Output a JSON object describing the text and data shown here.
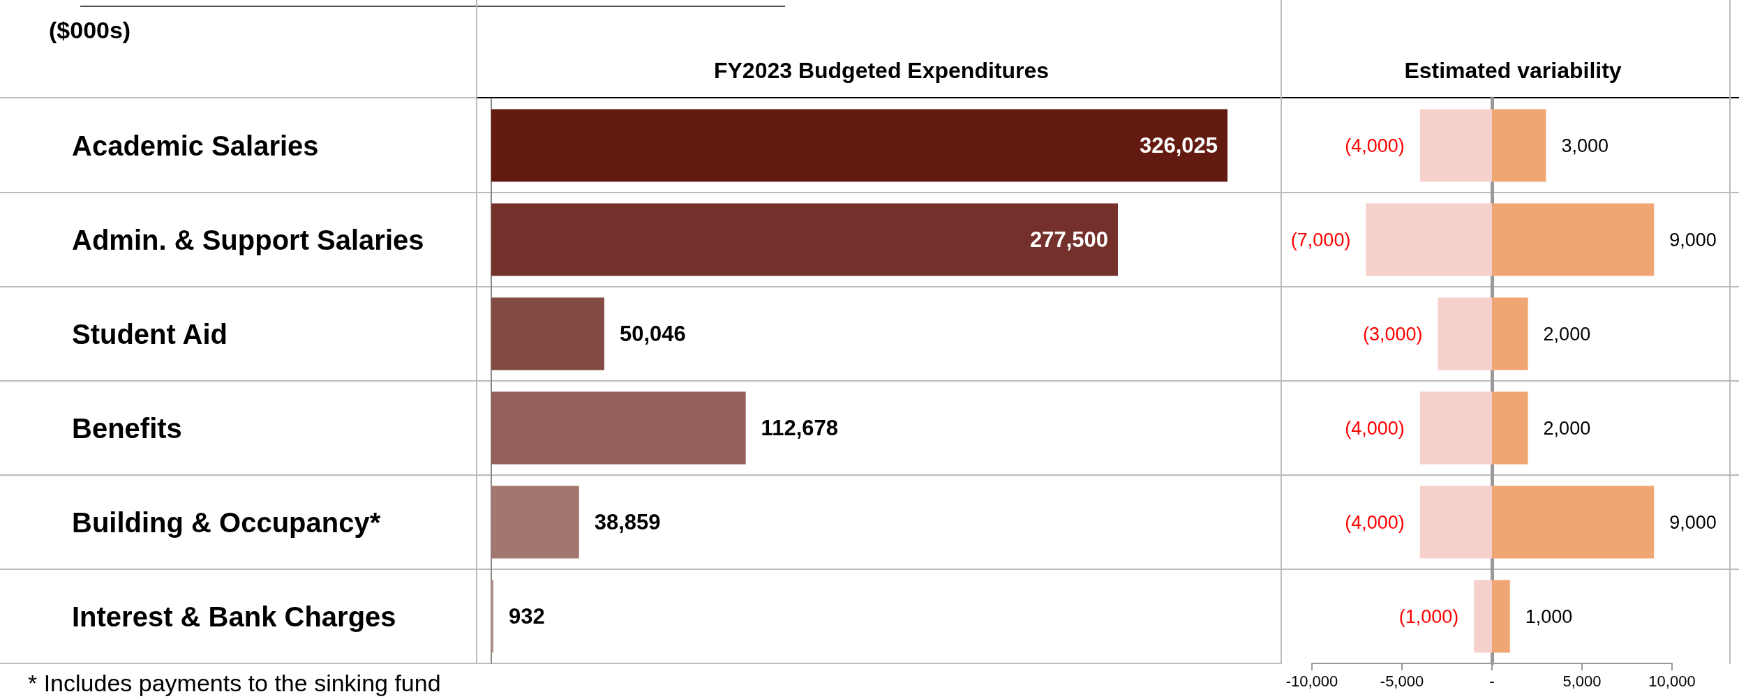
{
  "chart_data": [
    {
      "type": "bar",
      "orientation": "horizontal",
      "title": "FY2023 Budgeted Expenditures",
      "annotations": [
        "($000s)",
        "* Includes payments to the sinking fund"
      ],
      "categories": [
        "Academic Salaries",
        "Admin. & Support Salaries",
        "Student Aid",
        "Benefits",
        "Building & Occupancy*",
        "Interest & Bank Charges"
      ],
      "values": [
        326025,
        277500,
        50046,
        112678,
        38859,
        932
      ],
      "value_labels": [
        "326,025",
        "277,500",
        "50,046",
        "112,678",
        "38,859",
        "932"
      ],
      "colors": [
        "#631a10",
        "#74302a",
        "#834a43",
        "#935f58",
        "#a3766f",
        "#b08a85"
      ],
      "tick_labels": "y"
    },
    {
      "type": "bar",
      "orientation": "horizontal",
      "stacked": true,
      "title": "Estimated variability",
      "categories": [
        null,
        null,
        null,
        null,
        null,
        null
      ],
      "series": [
        {
          "color": "#f6d0ca",
          "values": [
            -4000,
            -7000,
            -3000,
            -4000,
            -4000,
            -1000
          ],
          "value_labels": [
            "(4,000)",
            "(7,000)",
            "(3,000)",
            "(4,000)",
            "(4,000)",
            "(1,000)"
          ]
        },
        {
          "color": "#f0a673",
          "values": [
            3000,
            9000,
            2000,
            2000,
            9000,
            1000
          ],
          "value_labels": [
            "3,000",
            "9,000",
            "2,000",
            "2,000",
            "9,000",
            "1,000"
          ]
        }
      ],
      "xlim": [
        -10000,
        10000
      ],
      "xticks": [
        {
          "value": -10000,
          "label": "-10,000"
        },
        {
          "value": -5000,
          "label": "-5,000"
        },
        {
          "value": 0,
          "label": "-"
        },
        {
          "value": 5000,
          "label": "5,000"
        },
        {
          "value": 10000,
          "label": "10,000"
        }
      ],
      "tick_labels": "x"
    }
  ]
}
